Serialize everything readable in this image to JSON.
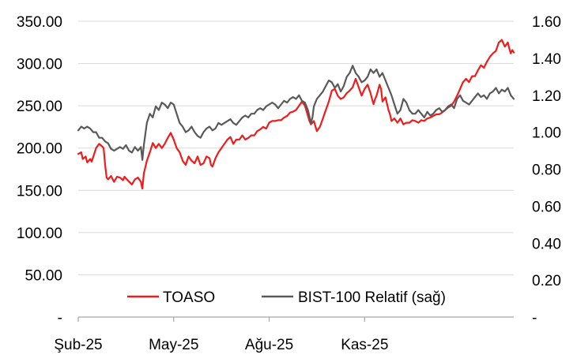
{
  "chart_data": {
    "type": "line",
    "title": "",
    "x_tick_labels": [
      "Şub-25",
      "May-25",
      "Ağu-25",
      "Kas-25"
    ],
    "y_left": {
      "range": [
        0,
        350
      ],
      "tick_values": [
        0,
        50,
        100,
        150,
        200,
        250,
        300,
        350
      ],
      "tick_labels": [
        "-",
        "50.00",
        "100.00",
        "150.00",
        "200.00",
        "250.00",
        "300.00",
        "350.00"
      ]
    },
    "y_right": {
      "range": [
        0,
        1.6
      ],
      "tick_values": [
        0,
        0.2,
        0.4,
        0.6,
        0.8,
        1.0,
        1.2,
        1.4,
        1.6
      ],
      "tick_labels": [
        "-",
        "0.20",
        "0.40",
        "0.60",
        "0.80",
        "1.00",
        "1.20",
        "1.40",
        "1.60"
      ]
    },
    "grid": "horizontal",
    "legend_position": "bottom-center",
    "series": [
      {
        "name": "TOASO",
        "axis": "left",
        "color": "#ee1c1c",
        "values": [
          [
            0,
            193
          ],
          [
            2,
            195
          ],
          [
            3,
            187
          ],
          [
            5,
            190
          ],
          [
            6,
            183
          ],
          [
            8,
            187
          ],
          [
            9,
            184
          ],
          [
            12,
            200
          ],
          [
            14,
            205
          ],
          [
            16,
            202
          ],
          [
            17,
            200
          ],
          [
            18,
            180
          ],
          [
            19,
            165
          ],
          [
            20,
            163
          ],
          [
            22,
            167
          ],
          [
            24,
            160
          ],
          [
            26,
            166
          ],
          [
            28,
            165
          ],
          [
            30,
            162
          ],
          [
            31,
            166
          ],
          [
            33,
            162
          ],
          [
            36,
            157
          ],
          [
            38,
            163
          ],
          [
            40,
            165
          ],
          [
            42,
            160
          ],
          [
            43,
            152
          ],
          [
            44,
            170
          ],
          [
            46,
            185
          ],
          [
            48,
            195
          ],
          [
            50,
            206
          ],
          [
            52,
            200
          ],
          [
            54,
            205
          ],
          [
            56,
            200
          ],
          [
            58,
            205
          ],
          [
            60,
            212
          ],
          [
            62,
            218
          ],
          [
            64,
            210
          ],
          [
            66,
            200
          ],
          [
            68,
            195
          ],
          [
            70,
            185
          ],
          [
            72,
            180
          ],
          [
            74,
            190
          ],
          [
            76,
            185
          ],
          [
            78,
            182
          ],
          [
            80,
            190
          ],
          [
            82,
            180
          ],
          [
            84,
            182
          ],
          [
            86,
            190
          ],
          [
            88,
            188
          ],
          [
            89,
            180
          ],
          [
            90,
            178
          ],
          [
            92,
            188
          ],
          [
            94,
            195
          ],
          [
            96,
            200
          ],
          [
            98,
            205
          ],
          [
            100,
            210
          ],
          [
            102,
            213
          ],
          [
            104,
            205
          ],
          [
            106,
            210
          ],
          [
            108,
            210
          ],
          [
            110,
            215
          ],
          [
            112,
            210
          ],
          [
            114,
            212
          ],
          [
            116,
            215
          ],
          [
            118,
            215
          ],
          [
            120,
            220
          ],
          [
            122,
            222
          ],
          [
            124,
            225
          ],
          [
            126,
            223
          ],
          [
            128,
            230
          ],
          [
            130,
            232
          ],
          [
            132,
            232
          ],
          [
            134,
            233
          ],
          [
            136,
            233
          ],
          [
            138,
            236
          ],
          [
            140,
            238
          ],
          [
            142,
            242
          ],
          [
            144,
            243
          ],
          [
            146,
            245
          ],
          [
            148,
            250
          ],
          [
            150,
            255
          ],
          [
            152,
            250
          ],
          [
            154,
            238
          ],
          [
            155,
            232
          ],
          [
            156,
            228
          ],
          [
            158,
            232
          ],
          [
            160,
            220
          ],
          [
            162,
            225
          ],
          [
            164,
            235
          ],
          [
            166,
            245
          ],
          [
            168,
            255
          ],
          [
            170,
            268
          ],
          [
            172,
            270
          ],
          [
            174,
            262
          ],
          [
            176,
            258
          ],
          [
            178,
            260
          ],
          [
            180,
            265
          ],
          [
            182,
            268
          ],
          [
            184,
            272
          ],
          [
            186,
            282
          ],
          [
            188,
            272
          ],
          [
            190,
            262
          ],
          [
            192,
            270
          ],
          [
            194,
            275
          ],
          [
            196,
            265
          ],
          [
            197,
            258
          ],
          [
            198,
            252
          ],
          [
            199,
            258
          ],
          [
            200,
            262
          ],
          [
            202,
            275
          ],
          [
            203,
            270
          ],
          [
            204,
            255
          ],
          [
            206,
            260
          ],
          [
            208,
            245
          ],
          [
            209,
            240
          ],
          [
            210,
            232
          ],
          [
            212,
            235
          ],
          [
            214,
            230
          ],
          [
            216,
            235
          ],
          [
            218,
            228
          ],
          [
            220,
            230
          ],
          [
            222,
            230
          ],
          [
            224,
            233
          ],
          [
            226,
            232
          ],
          [
            228,
            230
          ],
          [
            230,
            233
          ],
          [
            232,
            232
          ],
          [
            234,
            235
          ],
          [
            236,
            236
          ],
          [
            238,
            238
          ],
          [
            240,
            240
          ],
          [
            242,
            240
          ],
          [
            244,
            242
          ],
          [
            246,
            245
          ],
          [
            248,
            248
          ],
          [
            250,
            250
          ],
          [
            252,
            255
          ],
          [
            254,
            262
          ],
          [
            256,
            270
          ],
          [
            258,
            278
          ],
          [
            260,
            282
          ],
          [
            262,
            278
          ],
          [
            264,
            285
          ],
          [
            266,
            285
          ],
          [
            268,
            292
          ],
          [
            270,
            298
          ],
          [
            272,
            295
          ],
          [
            274,
            302
          ],
          [
            276,
            308
          ],
          [
            278,
            312
          ],
          [
            280,
            315
          ],
          [
            282,
            325
          ],
          [
            284,
            328
          ],
          [
            286,
            320
          ],
          [
            288,
            325
          ],
          [
            289,
            318
          ],
          [
            290,
            312
          ],
          [
            291,
            316
          ],
          [
            292,
            313
          ]
        ]
      },
      {
        "name": "BIST-100 Relatif (sağ)",
        "axis": "right",
        "color": "#595959",
        "values": [
          [
            0,
            1.01
          ],
          [
            2,
            1.03
          ],
          [
            4,
            1.02
          ],
          [
            6,
            1.03
          ],
          [
            8,
            1.02
          ],
          [
            10,
            1.0
          ],
          [
            12,
            1.0
          ],
          [
            14,
            0.97
          ],
          [
            16,
            0.97
          ],
          [
            18,
            0.95
          ],
          [
            20,
            0.94
          ],
          [
            22,
            0.91
          ],
          [
            24,
            0.9
          ],
          [
            26,
            0.91
          ],
          [
            28,
            0.92
          ],
          [
            30,
            0.91
          ],
          [
            32,
            0.93
          ],
          [
            34,
            0.9
          ],
          [
            36,
            0.89
          ],
          [
            38,
            0.92
          ],
          [
            40,
            0.9
          ],
          [
            42,
            0.92
          ],
          [
            43,
            0.85
          ],
          [
            44,
            0.93
          ],
          [
            46,
            1.05
          ],
          [
            48,
            1.1
          ],
          [
            50,
            1.08
          ],
          [
            52,
            1.14
          ],
          [
            54,
            1.12
          ],
          [
            56,
            1.16
          ],
          [
            58,
            1.15
          ],
          [
            60,
            1.13
          ],
          [
            62,
            1.16
          ],
          [
            64,
            1.15
          ],
          [
            66,
            1.1
          ],
          [
            68,
            1.05
          ],
          [
            70,
            1.03
          ],
          [
            72,
            1.0
          ],
          [
            74,
            1.01
          ],
          [
            76,
            1.03
          ],
          [
            78,
            1.0
          ],
          [
            80,
            0.98
          ],
          [
            82,
            0.97
          ],
          [
            84,
            1.0
          ],
          [
            86,
            1.02
          ],
          [
            88,
            1.03
          ],
          [
            90,
            1.01
          ],
          [
            92,
            1.02
          ],
          [
            94,
            1.05
          ],
          [
            96,
            1.04
          ],
          [
            98,
            1.05
          ],
          [
            100,
            1.06
          ],
          [
            102,
            1.07
          ],
          [
            104,
            1.05
          ],
          [
            106,
            1.04
          ],
          [
            108,
            1.06
          ],
          [
            110,
            1.08
          ],
          [
            112,
            1.09
          ],
          [
            114,
            1.08
          ],
          [
            116,
            1.1
          ],
          [
            118,
            1.1
          ],
          [
            120,
            1.12
          ],
          [
            122,
            1.13
          ],
          [
            124,
            1.12
          ],
          [
            126,
            1.14
          ],
          [
            128,
            1.15
          ],
          [
            130,
            1.16
          ],
          [
            132,
            1.15
          ],
          [
            134,
            1.13
          ],
          [
            136,
            1.15
          ],
          [
            138,
            1.17
          ],
          [
            140,
            1.16
          ],
          [
            142,
            1.18
          ],
          [
            144,
            1.19
          ],
          [
            146,
            1.18
          ],
          [
            148,
            1.2
          ],
          [
            150,
            1.17
          ],
          [
            152,
            1.16
          ],
          [
            154,
            1.12
          ],
          [
            156,
            1.05
          ],
          [
            157,
            1.08
          ],
          [
            158,
            1.14
          ],
          [
            160,
            1.18
          ],
          [
            162,
            1.2
          ],
          [
            164,
            1.22
          ],
          [
            166,
            1.25
          ],
          [
            168,
            1.28
          ],
          [
            170,
            1.27
          ],
          [
            172,
            1.24
          ],
          [
            174,
            1.26
          ],
          [
            176,
            1.22
          ],
          [
            178,
            1.25
          ],
          [
            180,
            1.3
          ],
          [
            182,
            1.32
          ],
          [
            184,
            1.36
          ],
          [
            186,
            1.32
          ],
          [
            188,
            1.3
          ],
          [
            190,
            1.27
          ],
          [
            192,
            1.28
          ],
          [
            194,
            1.3
          ],
          [
            196,
            1.34
          ],
          [
            198,
            1.32
          ],
          [
            200,
            1.34
          ],
          [
            202,
            1.3
          ],
          [
            204,
            1.32
          ],
          [
            206,
            1.28
          ],
          [
            208,
            1.24
          ],
          [
            210,
            1.2
          ],
          [
            212,
            1.15
          ],
          [
            214,
            1.1
          ],
          [
            216,
            1.12
          ],
          [
            218,
            1.18
          ],
          [
            220,
            1.16
          ],
          [
            222,
            1.12
          ],
          [
            224,
            1.1
          ],
          [
            226,
            1.1
          ],
          [
            228,
            1.12
          ],
          [
            230,
            1.1
          ],
          [
            232,
            1.08
          ],
          [
            234,
            1.11
          ],
          [
            236,
            1.09
          ],
          [
            238,
            1.1
          ],
          [
            240,
            1.12
          ],
          [
            242,
            1.13
          ],
          [
            244,
            1.11
          ],
          [
            246,
            1.12
          ],
          [
            248,
            1.14
          ],
          [
            250,
            1.15
          ],
          [
            252,
            1.13
          ],
          [
            254,
            1.18
          ],
          [
            256,
            1.2
          ],
          [
            258,
            1.17
          ],
          [
            260,
            1.16
          ],
          [
            262,
            1.15
          ],
          [
            264,
            1.17
          ],
          [
            266,
            1.19
          ],
          [
            268,
            1.21
          ],
          [
            270,
            1.19
          ],
          [
            272,
            1.2
          ],
          [
            274,
            1.18
          ],
          [
            276,
            1.21
          ],
          [
            278,
            1.22
          ],
          [
            280,
            1.24
          ],
          [
            282,
            1.21
          ],
          [
            284,
            1.23
          ],
          [
            286,
            1.22
          ],
          [
            288,
            1.24
          ],
          [
            290,
            1.2
          ],
          [
            292,
            1.18
          ]
        ]
      }
    ]
  }
}
